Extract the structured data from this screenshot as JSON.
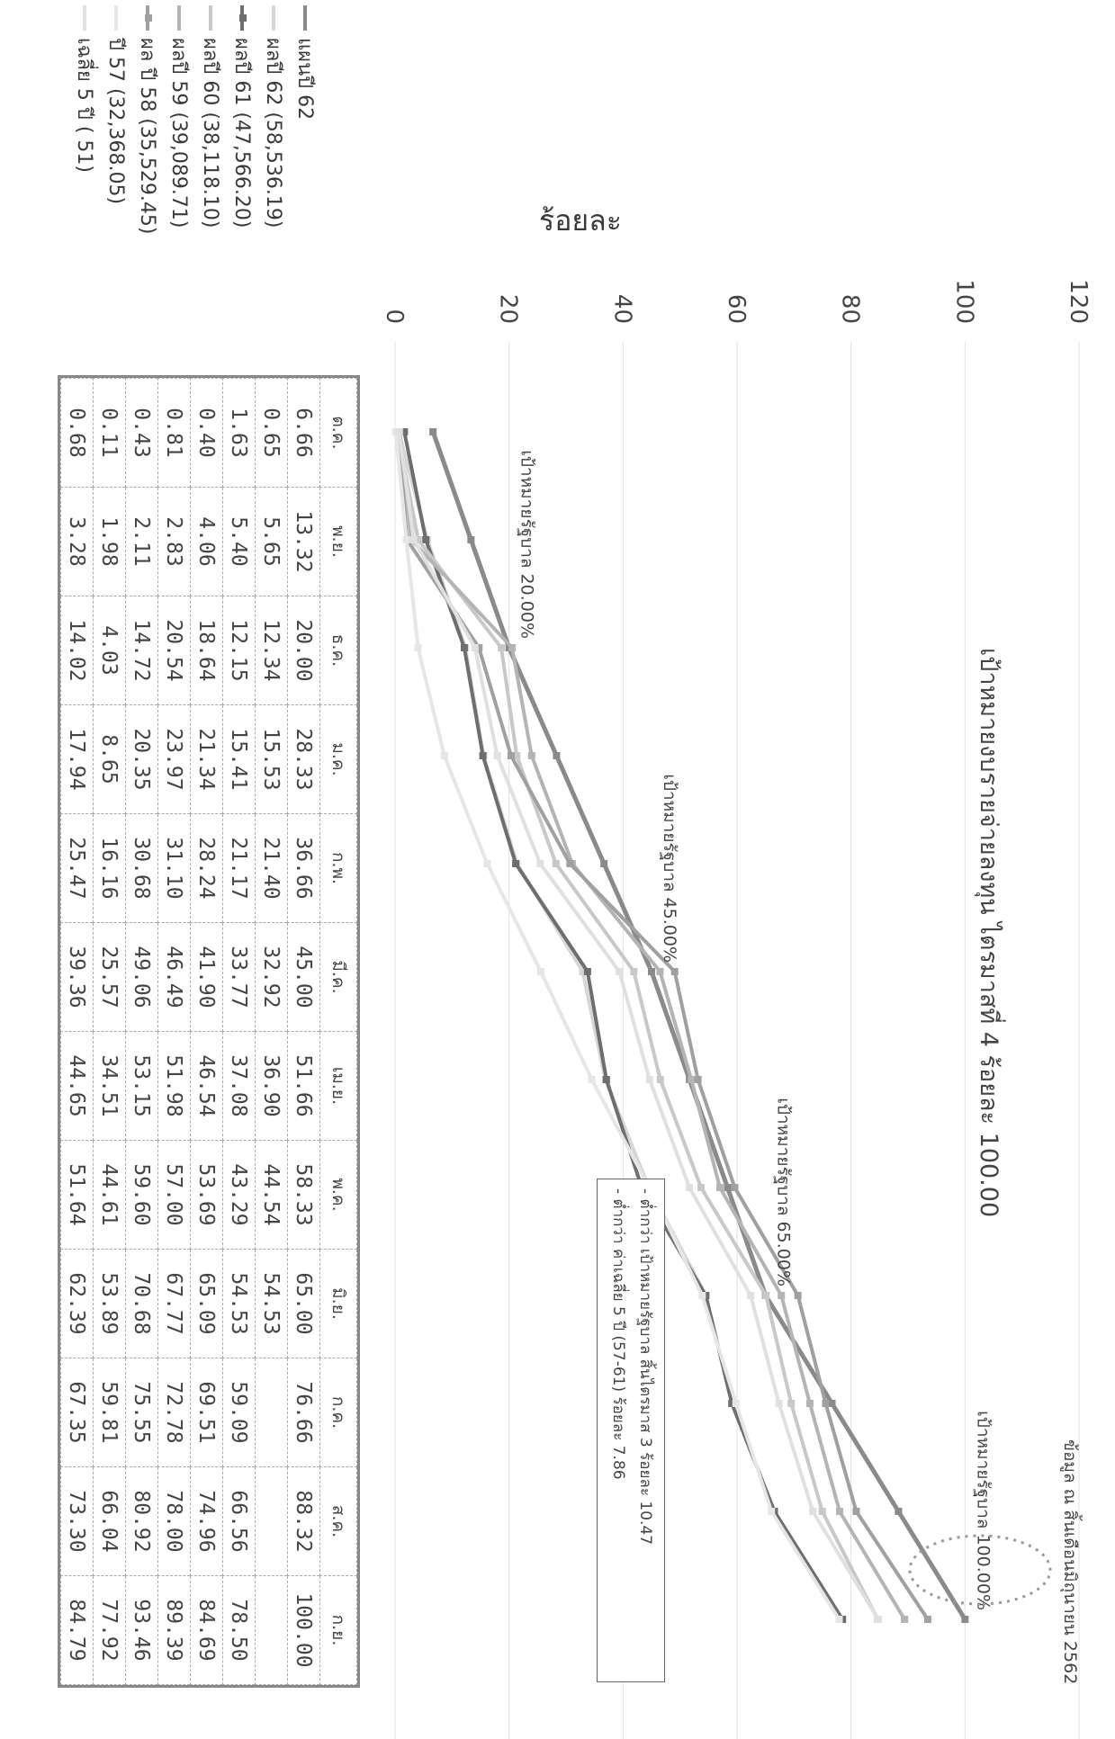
{
  "header": {
    "title": "เป้าหมายงบรายจ่ายลงทุน ไตรมาสที่ 4 ร้อยละ 100.00",
    "date_note": "ข้อมูล ณ สิ้นเดือนมิถุนายน 2562"
  },
  "notes": {
    "line1": "- ต่ำกว่า เป้าหมายรัฐบาล สิ้นไตรมาส 3  ร้อยละ 10.47",
    "line2": "- ต่ำกว่า ค่าเฉลี่ย 5 ปี (57-61) ร้อยละ  7.86"
  },
  "chart_data": {
    "type": "line",
    "ylabel": "ร้อยละ",
    "ylim": [
      0,
      120
    ],
    "yticks": [
      0,
      20,
      40,
      60,
      80,
      100,
      120
    ],
    "grid": true,
    "categories": [
      "ต.ค.",
      "พ.ย.",
      "ธ.ค.",
      "ม.ค.",
      "ก.พ.",
      "มี.ค.",
      "เม.ย.",
      "พ.ค.",
      "มิ.ย.",
      "ก.ค.",
      "ส.ค.",
      "ก.ย."
    ],
    "series": [
      {
        "name": "แผนปี 62",
        "color": "#8a8a8a",
        "values": [
          6.66,
          13.32,
          20.0,
          28.33,
          36.66,
          45.0,
          51.66,
          58.33,
          65.0,
          76.66,
          88.32,
          100.0
        ]
      },
      {
        "name": "ผลปี 62 (58,536.19)",
        "color": "#d6d6d6",
        "values": [
          0.65,
          5.65,
          12.34,
          15.53,
          21.4,
          32.92,
          36.9,
          44.54,
          54.53,
          null,
          null,
          null
        ]
      },
      {
        "name": "ผลปี 61 (47,566.20)",
        "color": "#6e6e6e",
        "values": [
          1.63,
          5.4,
          12.15,
          15.41,
          21.17,
          33.77,
          37.08,
          43.29,
          54.53,
          59.09,
          66.56,
          78.5
        ]
      },
      {
        "name": "ผลปี 60 (38,118.10)",
        "color": "#c8c8c8",
        "values": [
          0.4,
          4.06,
          18.64,
          21.34,
          28.24,
          41.9,
          46.54,
          53.69,
          65.09,
          69.51,
          74.96,
          84.69
        ]
      },
      {
        "name": "ผลปี 59 (39,089.71)",
        "color": "#b4b4b4",
        "values": [
          0.81,
          2.83,
          20.54,
          23.97,
          31.1,
          46.49,
          51.98,
          57.0,
          67.77,
          72.78,
          78.0,
          89.39
        ]
      },
      {
        "name": "ผล ปี 58 (35,529.45)",
        "color": "#a0a0a0",
        "values": [
          0.43,
          2.11,
          14.72,
          20.35,
          30.68,
          49.06,
          53.15,
          59.6,
          70.68,
          75.55,
          80.92,
          93.46
        ]
      },
      {
        "name": "ปี 57 (32,368.05)",
        "color": "#e6e6e6",
        "values": [
          0.11,
          1.98,
          4.03,
          8.65,
          16.16,
          25.57,
          34.51,
          44.61,
          53.89,
          59.81,
          66.04,
          77.92
        ]
      },
      {
        "name": "เฉลี่ย 5 ปี  ( 51)",
        "color": "#e0e0e0",
        "values": [
          0.68,
          3.28,
          14.02,
          17.94,
          25.47,
          39.36,
          44.65,
          51.64,
          62.39,
          67.35,
          73.3,
          84.79
        ]
      }
    ],
    "annotations": [
      {
        "text": "เป้าหมายรัฐบาล 20.00%",
        "x": "ธ.ค.",
        "y": 20
      },
      {
        "text": "เป้าหมายรัฐบาล 45.00%",
        "x": "มี.ค.",
        "y": 45
      },
      {
        "text": "เป้าหมายรัฐบาล 65.00%",
        "x": "มิ.ย.",
        "y": 65
      },
      {
        "text": "เป้าหมายรัฐบาล 100.00%",
        "x": "ก.ย.",
        "y": 100
      }
    ]
  }
}
